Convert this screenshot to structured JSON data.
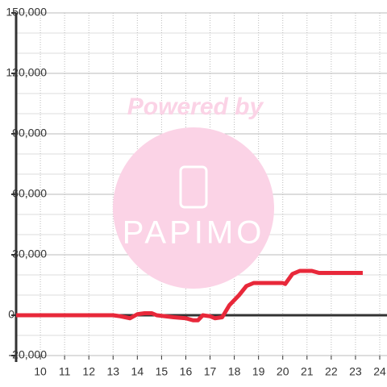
{
  "chart_data": {
    "type": "line",
    "watermark": [
      "Powered by",
      "PAPIMO"
    ],
    "x": [
      9,
      11.5,
      13,
      13.3,
      13.7,
      14,
      14.3,
      14.6,
      14.8,
      15.5,
      16,
      16.3,
      16.5,
      16.7,
      17,
      17.2,
      17.5,
      17.8,
      18.2,
      18.5,
      18.8,
      19.5,
      20,
      20.1,
      20.4,
      20.7,
      21.2,
      21.5,
      23.3
    ],
    "series": [
      {
        "color": "#e8283a",
        "values": [
          0,
          0,
          0,
          -500,
          -1500,
          500,
          1000,
          1000,
          0,
          -1000,
          -1500,
          -2500,
          -2500,
          0,
          -500,
          -1500,
          -1000,
          5000,
          10000,
          14500,
          16000,
          16000,
          16000,
          15500,
          20500,
          22000,
          22000,
          21000,
          21000
        ]
      }
    ],
    "xlim": [
      9,
      24.3
    ],
    "xticks": [
      10,
      11,
      12,
      13,
      14,
      15,
      16,
      17,
      18,
      19,
      20,
      21,
      22,
      23,
      24
    ],
    "ylim": [
      -20000,
      150000
    ],
    "yticks": [
      {
        "value": -20000,
        "label": "-20,000"
      },
      0,
      {
        "value": 30000,
        "label": "30,000"
      },
      {
        "value": 60000,
        "label": "60,000"
      },
      {
        "value": 90000,
        "label": "90,000"
      },
      {
        "value": 120000,
        "label": "120,000"
      },
      {
        "value": 150000,
        "label": "150,000"
      }
    ],
    "minor_yticks": [
      -10000,
      10000,
      20000,
      40000,
      50000,
      70000,
      80000,
      100000,
      110000,
      130000,
      140000
    ],
    "grid": true
  }
}
